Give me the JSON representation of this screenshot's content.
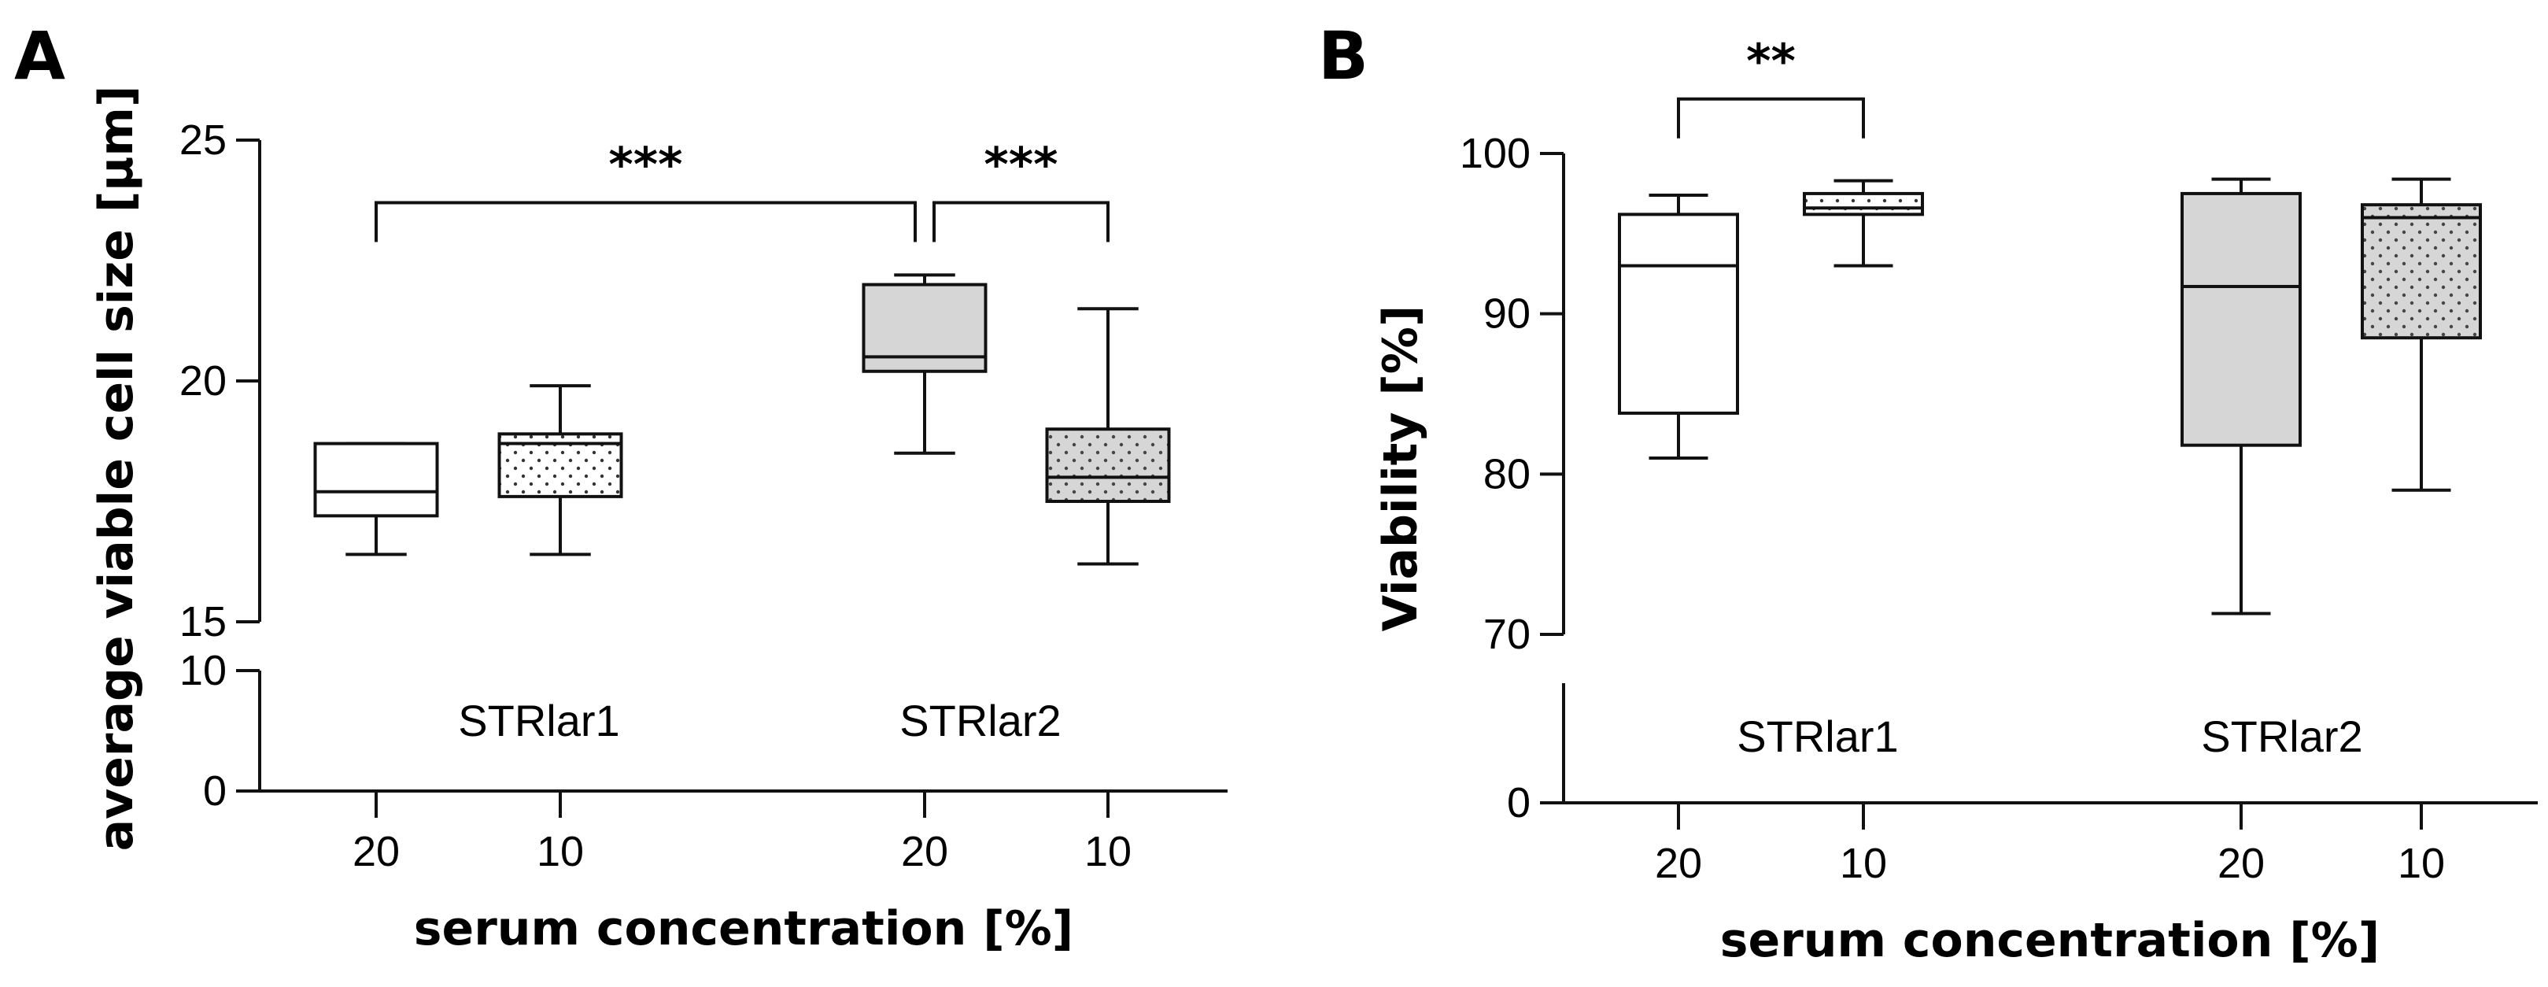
{
  "chart_data": [
    {
      "panel": "A",
      "type": "box",
      "ylabel": "average viable cell size [µm]",
      "xlabel": "serum concentration [%]",
      "ylim": [
        0,
        25
      ],
      "axis_break": [
        10,
        15
      ],
      "yticks": [
        0,
        10,
        15,
        20,
        25
      ],
      "ytick_labels": [
        "0",
        "10",
        "15",
        "20",
        "25"
      ],
      "groups": [
        {
          "name": "STRlar1",
          "boxes": [
            {
              "label": "20",
              "fill": "white",
              "min": 16.4,
              "q1": 17.2,
              "median": 17.7,
              "q3": 18.7,
              "max": 18.7
            },
            {
              "label": "10",
              "fill": "dotted-white",
              "min": 16.4,
              "q1": 17.6,
              "median": 18.7,
              "q3": 18.9,
              "max": 19.9
            }
          ]
        },
        {
          "name": "STRlar2",
          "boxes": [
            {
              "label": "20",
              "fill": "grey",
              "min": 18.5,
              "q1": 20.2,
              "median": 20.5,
              "q3": 22.0,
              "max": 22.2
            },
            {
              "label": "10",
              "fill": "dotted-grey",
              "min": 16.2,
              "q1": 17.5,
              "median": 18.0,
              "q3": 19.0,
              "max": 21.5
            }
          ]
        }
      ],
      "significance": [
        {
          "from": [
            0,
            0
          ],
          "to": [
            1,
            0
          ],
          "label": "***",
          "y": 23.7
        },
        {
          "from": [
            1,
            0
          ],
          "to": [
            1,
            1
          ],
          "label": "***",
          "y": 23.7
        }
      ]
    },
    {
      "panel": "B",
      "type": "box",
      "ylabel": "Viability [%]",
      "xlabel": "serum concentration [%]",
      "ylim": [
        0,
        100
      ],
      "axis_break": [
        0,
        70
      ],
      "yticks": [
        0,
        70,
        80,
        90,
        100
      ],
      "ytick_labels": [
        "0",
        "70",
        "80",
        "90",
        "100"
      ],
      "groups": [
        {
          "name": "STRlar1",
          "boxes": [
            {
              "label": "20",
              "fill": "white",
              "min": 81.0,
              "q1": 83.8,
              "median": 93.0,
              "q3": 96.2,
              "max": 97.4
            },
            {
              "label": "10",
              "fill": "dotted-white",
              "min": 93.0,
              "q1": 96.2,
              "median": 96.6,
              "q3": 97.5,
              "max": 98.3
            }
          ]
        },
        {
          "name": "STRlar2",
          "boxes": [
            {
              "label": "20",
              "fill": "grey",
              "min": 71.3,
              "q1": 81.8,
              "median": 91.7,
              "q3": 97.5,
              "max": 98.4
            },
            {
              "label": "10",
              "fill": "dotted-grey",
              "min": 79.0,
              "q1": 88.5,
              "median": 96.0,
              "q3": 96.8,
              "max": 98.4
            }
          ]
        }
      ],
      "significance": [
        {
          "from": [
            0,
            0
          ],
          "to": [
            0,
            1
          ],
          "label": "**",
          "y": 103.4
        }
      ]
    }
  ]
}
